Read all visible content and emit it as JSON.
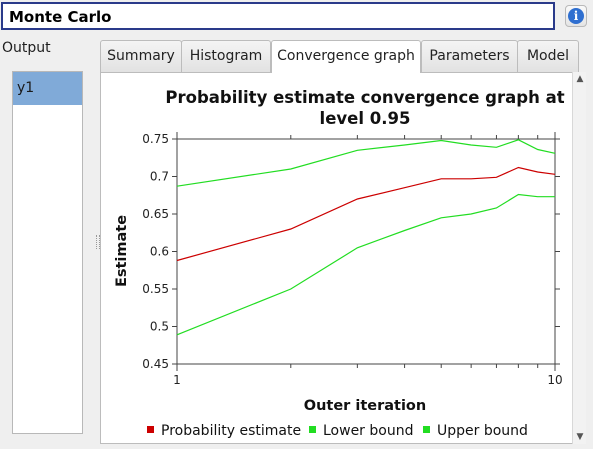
{
  "window": {
    "title": "Monte Carlo"
  },
  "info_icon": "info-icon",
  "output": {
    "label": "Output",
    "items": [
      "y1"
    ]
  },
  "tabs": [
    {
      "label": "Summary",
      "active": false
    },
    {
      "label": "Histogram",
      "active": false
    },
    {
      "label": "Convergence graph",
      "active": true
    },
    {
      "label": "Parameters",
      "active": false
    },
    {
      "label": "Model",
      "active": false
    }
  ],
  "colors": {
    "estimate": "#cc0000",
    "bounds": "#22dd22",
    "selection": "#80aad8"
  },
  "chart_data": {
    "type": "line",
    "title": "Probability estimate convergence graph at level 0.95",
    "xlabel": "Outer iteration",
    "ylabel": "Estimate",
    "xscale": "log",
    "xlim": [
      1,
      10
    ],
    "ylim": [
      0.45,
      0.75
    ],
    "x_ticks": [
      "1",
      "10"
    ],
    "y_ticks": [
      "0.45",
      "0.5",
      "0.55",
      "0.6",
      "0.65",
      "0.7",
      "0.75"
    ],
    "legend_position": "bottom",
    "x": [
      1,
      2,
      3,
      4,
      5,
      6,
      7,
      8,
      9,
      10
    ],
    "series": [
      {
        "name": "Probability estimate",
        "color": "#cc0000",
        "values": [
          0.588,
          0.63,
          0.67,
          0.685,
          0.697,
          0.697,
          0.699,
          0.712,
          0.706,
          0.703
        ]
      },
      {
        "name": "Lower bound",
        "color": "#22dd22",
        "values": [
          0.489,
          0.55,
          0.605,
          0.628,
          0.645,
          0.65,
          0.658,
          0.676,
          0.673,
          0.673
        ]
      },
      {
        "name": "Upper bound",
        "color": "#22dd22",
        "values": [
          0.687,
          0.71,
          0.735,
          0.742,
          0.748,
          0.742,
          0.739,
          0.749,
          0.736,
          0.731
        ]
      }
    ]
  }
}
